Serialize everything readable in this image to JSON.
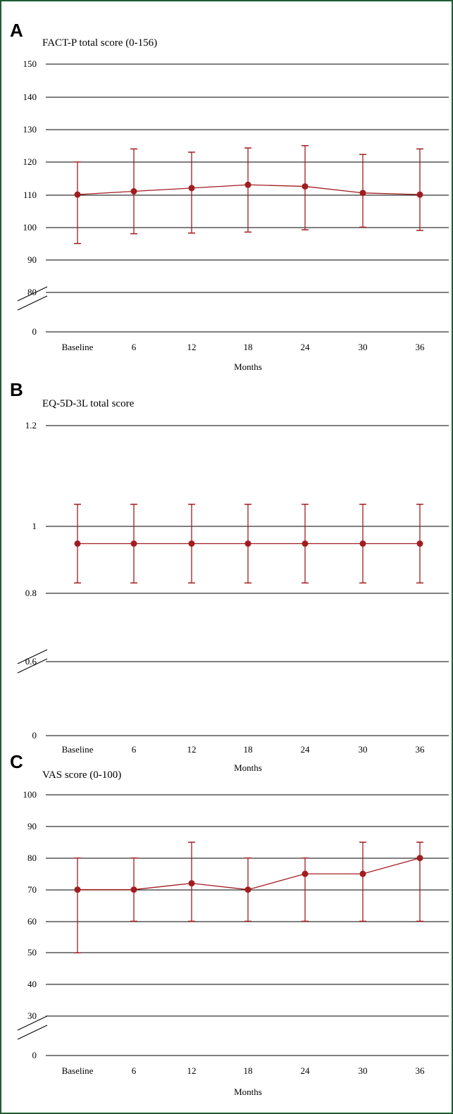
{
  "colors": {
    "series": "#a11d21",
    "frame": "#1e5c32"
  },
  "chart_data": [
    {
      "type": "line",
      "panel": "A",
      "title": "FACT-P total score (0-156)",
      "xlabel": "Months",
      "categories": [
        "Baseline",
        "6",
        "12",
        "18",
        "24",
        "30",
        "36"
      ],
      "y_ticks": [
        "150",
        "140",
        "130",
        "120",
        "110",
        "100",
        "90",
        "80",
        "0"
      ],
      "axis_break": true,
      "grid": true,
      "series": [
        {
          "values": [
            110,
            111,
            112,
            113,
            112.5,
            110.5,
            110
          ],
          "error_low": [
            95,
            98,
            98.2,
            98.5,
            99.2,
            100,
            99
          ],
          "error_high": [
            120,
            124,
            123,
            124.3,
            125,
            122.3,
            124
          ]
        }
      ]
    },
    {
      "type": "line",
      "panel": "B",
      "title": "EQ-5D-3L total score",
      "xlabel": "Months",
      "categories": [
        "Baseline",
        "6",
        "12",
        "18",
        "24",
        "30",
        "36"
      ],
      "y_ticks": [
        "1.2",
        "1",
        "0.8",
        "0.6",
        "0"
      ],
      "axis_break": true,
      "grid": true,
      "series": [
        {
          "values": [
            0.9,
            0.9,
            0.9,
            0.9,
            0.9,
            0.9,
            0.9
          ],
          "error_low": [
            0.8,
            0.8,
            0.8,
            0.8,
            0.8,
            0.8,
            0.8
          ],
          "error_high": [
            1,
            1,
            1,
            1,
            1,
            1,
            1
          ]
        }
      ]
    },
    {
      "type": "line",
      "panel": "C",
      "title": "VAS score (0-100)",
      "xlabel": "Months",
      "categories": [
        "Baseline",
        "6",
        "12",
        "18",
        "24",
        "30",
        "36"
      ],
      "y_ticks": [
        "100",
        "90",
        "80",
        "70",
        "60",
        "50",
        "40",
        "30",
        "0"
      ],
      "axis_break": true,
      "grid": true,
      "series": [
        {
          "values": [
            70,
            70,
            72,
            70,
            75,
            75,
            80
          ],
          "error_low": [
            50,
            60,
            60,
            60,
            60,
            60,
            60
          ],
          "error_high": [
            80,
            80,
            85,
            80,
            80,
            85,
            85
          ]
        }
      ]
    }
  ]
}
